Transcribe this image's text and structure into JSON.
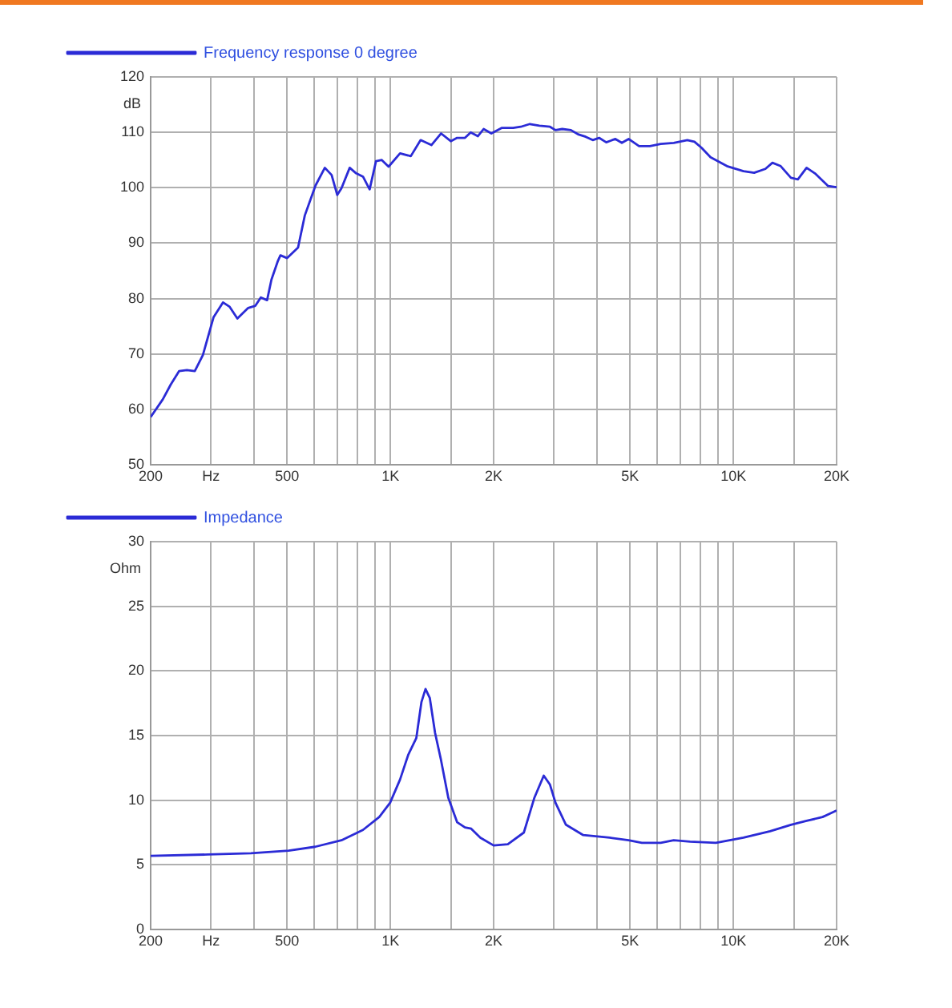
{
  "chart_data": [
    {
      "type": "line",
      "ylabel": "dB",
      "log": "x",
      "grid": true,
      "legend": "top left",
      "marker": "none",
      "line_style": "solid",
      "xlim": [
        200,
        20000
      ],
      "ylim": [
        50,
        120
      ],
      "xticks": [
        {
          "value": 200,
          "label": "200"
        },
        {
          "value": 300,
          "label": "Hz"
        },
        {
          "value": 400,
          "label": null
        },
        {
          "value": 500,
          "label": "500"
        },
        {
          "value": 600,
          "label": null
        },
        {
          "value": 700,
          "label": null
        },
        {
          "value": 800,
          "label": null
        },
        {
          "value": 900,
          "label": null
        },
        {
          "value": 1000,
          "label": "1K"
        },
        {
          "value": 1500,
          "label": null
        },
        {
          "value": 2000,
          "label": "2K"
        },
        {
          "value": 3000,
          "label": null
        },
        {
          "value": 4000,
          "label": null
        },
        {
          "value": 5000,
          "label": "5K"
        },
        {
          "value": 6000,
          "label": null
        },
        {
          "value": 7000,
          "label": null
        },
        {
          "value": 8000,
          "label": null
        },
        {
          "value": 9000,
          "label": null
        },
        {
          "value": 10000,
          "label": "10K"
        },
        {
          "value": 15000,
          "label": null
        },
        {
          "value": 20000,
          "label": "20K"
        }
      ],
      "yticks": [
        50,
        60,
        70,
        80,
        90,
        100,
        110,
        120
      ],
      "series": [
        {
          "name": "Frequency response 0 degree",
          "color": "#2b2bd6",
          "x": [
            200,
            217,
            229,
            242,
            255,
            269,
            284,
            305,
            325,
            340,
            358,
            385,
            404,
            419,
            437,
            450,
            470,
            478,
            500,
            538,
            563,
            605,
            644,
            674,
            700,
            720,
            761,
            795,
            832,
            870,
            908,
            944,
            988,
            1067,
            1147,
            1225,
            1317,
            1405,
            1500,
            1565,
            1650,
            1715,
            1800,
            1870,
            1970,
            2115,
            2280,
            2400,
            2550,
            2720,
            2920,
            3030,
            3170,
            3360,
            3540,
            3710,
            3890,
            4060,
            4260,
            4530,
            4730,
            4950,
            5310,
            5710,
            6140,
            6700,
            7340,
            7700,
            8080,
            8580,
            9580,
            10700,
            11500,
            12400,
            13000,
            13740,
            14720,
            15420,
            16350,
            17290,
            18900,
            20000
          ],
          "values": [
            58.6,
            61.8,
            64.5,
            66.9,
            67.1,
            66.9,
            69.8,
            76.6,
            79.3,
            78.5,
            76.4,
            78.3,
            78.7,
            80.2,
            79.7,
            83.4,
            86.8,
            87.8,
            87.3,
            89.2,
            95,
            100.4,
            103.6,
            102.3,
            98.7,
            99.9,
            103.6,
            102.6,
            102,
            99.7,
            104.8,
            105,
            103.8,
            106.2,
            105.7,
            108.6,
            107.7,
            109.8,
            108.4,
            109,
            109,
            110,
            109.3,
            110.6,
            109.8,
            110.8,
            110.8,
            111,
            111.5,
            111.2,
            111,
            110.4,
            110.6,
            110.4,
            109.6,
            109.2,
            108.6,
            109,
            108.2,
            108.8,
            108.1,
            108.8,
            107.5,
            107.5,
            107.9,
            108.1,
            108.6,
            108.3,
            107.2,
            105.5,
            103.9,
            103,
            102.7,
            103.4,
            104.5,
            103.9,
            101.8,
            101.5,
            103.6,
            102.6,
            100.3,
            100.1
          ]
        }
      ]
    },
    {
      "type": "line",
      "ylabel": "Ohm",
      "log": "x",
      "grid": true,
      "legend": "top left",
      "marker": "none",
      "line_style": "solid",
      "xlim": [
        200,
        20000
      ],
      "ylim": [
        0,
        30
      ],
      "xticks": [
        {
          "value": 200,
          "label": "200"
        },
        {
          "value": 300,
          "label": "Hz"
        },
        {
          "value": 400,
          "label": null
        },
        {
          "value": 500,
          "label": "500"
        },
        {
          "value": 600,
          "label": null
        },
        {
          "value": 700,
          "label": null
        },
        {
          "value": 800,
          "label": null
        },
        {
          "value": 900,
          "label": null
        },
        {
          "value": 1000,
          "label": "1K"
        },
        {
          "value": 1500,
          "label": null
        },
        {
          "value": 2000,
          "label": "2K"
        },
        {
          "value": 3000,
          "label": null
        },
        {
          "value": 4000,
          "label": null
        },
        {
          "value": 5000,
          "label": "5K"
        },
        {
          "value": 6000,
          "label": null
        },
        {
          "value": 7000,
          "label": null
        },
        {
          "value": 8000,
          "label": null
        },
        {
          "value": 9000,
          "label": null
        },
        {
          "value": 10000,
          "label": "10K"
        },
        {
          "value": 15000,
          "label": null
        },
        {
          "value": 20000,
          "label": "20K"
        }
      ],
      "yticks": [
        0,
        5,
        10,
        15,
        20,
        25,
        30
      ],
      "series": [
        {
          "name": "Impedance",
          "color": "#2b2bd6",
          "x": [
            200,
            294,
            392,
            505,
            604,
            720,
            832,
            928,
            998,
            1067,
            1127,
            1190,
            1232,
            1266,
            1303,
            1350,
            1405,
            1475,
            1565,
            1650,
            1720,
            1830,
            2000,
            2200,
            2450,
            2630,
            2800,
            2920,
            3030,
            3250,
            3650,
            4360,
            4950,
            5410,
            6140,
            6700,
            7480,
            8890,
            10700,
            12800,
            14720,
            16350,
            18200,
            20000
          ],
          "values": [
            5.7,
            5.8,
            5.9,
            6.1,
            6.4,
            6.9,
            7.7,
            8.7,
            9.8,
            11.6,
            13.5,
            14.8,
            17.6,
            18.6,
            17.9,
            15.2,
            13.1,
            10.2,
            8.3,
            7.9,
            7.8,
            7.1,
            6.5,
            6.6,
            7.5,
            10.2,
            11.9,
            11.2,
            9.8,
            8.1,
            7.3,
            7.1,
            6.9,
            6.7,
            6.7,
            6.9,
            6.8,
            6.7,
            7.1,
            7.6,
            8.1,
            8.4,
            8.7,
            9.2
          ]
        }
      ]
    }
  ]
}
